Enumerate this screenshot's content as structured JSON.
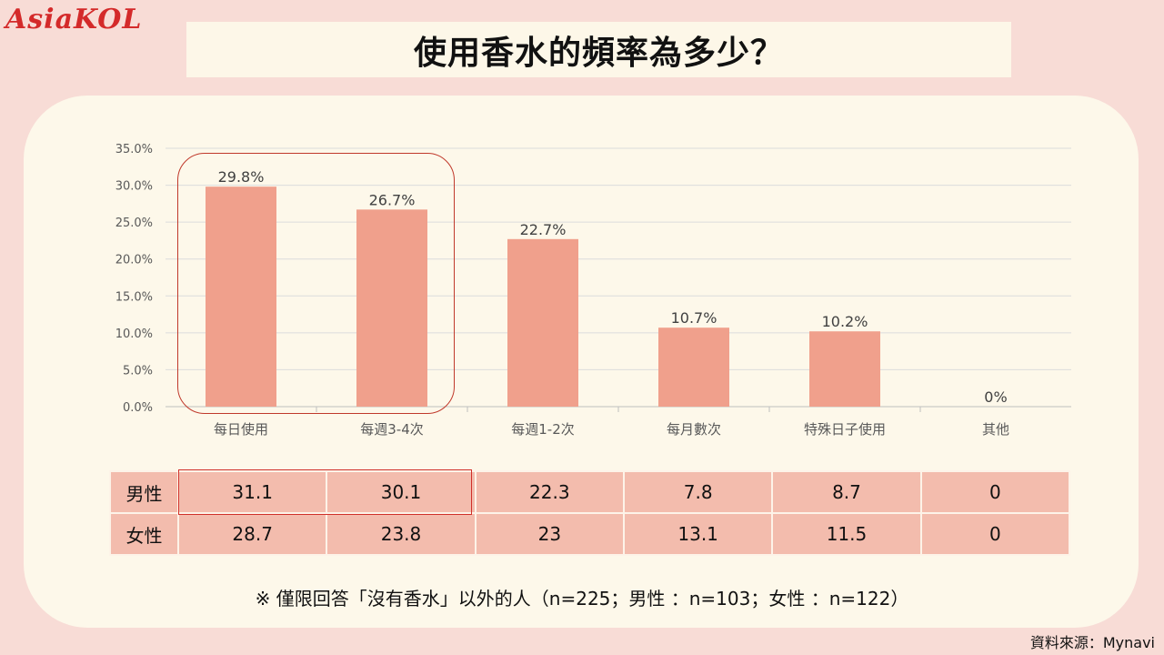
{
  "header": {
    "logo": "AsiaKOL",
    "title": "使用香水的頻率為多少？"
  },
  "chart_data": {
    "type": "bar",
    "categories": [
      "每日使用",
      "每週3-4次",
      "每週1-2次",
      "每月數次",
      "特殊日子使用",
      "其他"
    ],
    "values": [
      29.8,
      26.7,
      22.7,
      10.7,
      10.2,
      0
    ],
    "data_labels": [
      "29.8%",
      "26.7%",
      "22.7%",
      "10.7%",
      "10.2%",
      "0%"
    ],
    "yticks": [
      "0.0%",
      "5.0%",
      "10.0%",
      "15.0%",
      "20.0%",
      "25.0%",
      "30.0%",
      "35.0%"
    ],
    "ylim": [
      0,
      35
    ],
    "grid": true,
    "bar_color": "#f0a08c"
  },
  "table": {
    "rows": [
      {
        "label": "男性",
        "values": [
          "31.1",
          "30.1",
          "22.3",
          "7.8",
          "8.7",
          "0"
        ]
      },
      {
        "label": "女性",
        "values": [
          "28.7",
          "23.8",
          "23",
          "13.1",
          "11.5",
          "0"
        ]
      }
    ]
  },
  "footnote": "※ 僅限回答「沒有香水」以外的人（n=225；男性 ：n=103；女性 ：n=122）",
  "source": "資料來源：Mynavi",
  "colors": {
    "background": "#f8dcd6",
    "panel": "#fdf8ea",
    "highlight": "#c0392b",
    "table_cell": "#f3bcad"
  }
}
